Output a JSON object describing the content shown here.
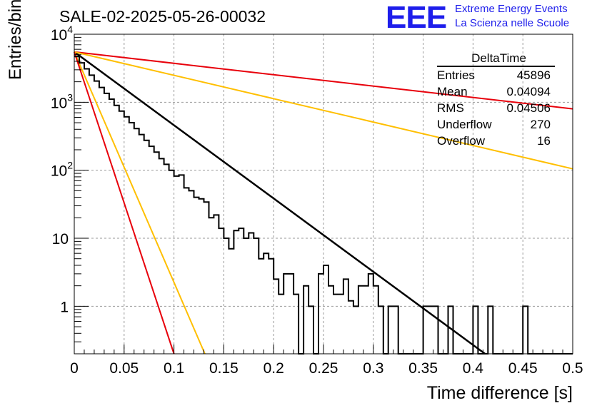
{
  "run_title": "SALE-02-2025-05-26-00032",
  "logo": {
    "letters": "EEE",
    "line1": "Extreme Energy Events",
    "line2": "La Scienza nelle Scuole",
    "color": "#1e1eeb"
  },
  "stats_box": {
    "title": "DeltaTime",
    "rows": [
      {
        "label": "Entries",
        "value": "45896"
      },
      {
        "label": "Mean",
        "value": "0.04094"
      },
      {
        "label": "RMS",
        "value": "0.04506"
      },
      {
        "label": "Underflow",
        "value": "270"
      },
      {
        "label": "Overflow",
        "value": "16"
      }
    ]
  },
  "chart_data": {
    "type": "line",
    "xlabel": "Time difference [s]",
    "ylabel": "Entries/bin",
    "xlim": [
      0,
      0.5
    ],
    "ylim": [
      0.2,
      10000
    ],
    "y_scale": "log",
    "grid": true,
    "x_ticks": [
      "0",
      "0.05",
      "0.1",
      "0.15",
      "0.2",
      "0.25",
      "0.3",
      "0.35",
      "0.4",
      "0.45",
      "0.5"
    ],
    "y_ticks": [
      {
        "value": 1,
        "base": "1",
        "exp": ""
      },
      {
        "value": 10,
        "base": "10",
        "exp": ""
      },
      {
        "value": 100,
        "base": "10",
        "exp": "2"
      },
      {
        "value": 1000,
        "base": "10",
        "exp": "3"
      },
      {
        "value": 10000,
        "base": "10",
        "exp": "4"
      }
    ],
    "histogram": {
      "bin_width": 0.005,
      "x_start": 0,
      "color": "#000000",
      "values": [
        4700,
        3800,
        3100,
        2500,
        2050,
        1650,
        1350,
        1110,
        900,
        740,
        610,
        500,
        410,
        335,
        275,
        225,
        185,
        148,
        122,
        100,
        82,
        85,
        55,
        50,
        40,
        38,
        34,
        20,
        22,
        14,
        10,
        7,
        13,
        14,
        10,
        12,
        10,
        5,
        6,
        5,
        2.5,
        1.5,
        3,
        3,
        1.5,
        0.1,
        2,
        1,
        0.1,
        3,
        4,
        2,
        1.5,
        1.5,
        2.5,
        1.2,
        1,
        2,
        2,
        3,
        2,
        1,
        0.1,
        1,
        1,
        0.1,
        0.1,
        0.1,
        0.1,
        0.1,
        1,
        1,
        1,
        0.1,
        0.1,
        1,
        0.1,
        0.1,
        0.1,
        0.1,
        1,
        0.1,
        0.1,
        1,
        0.1,
        0.1,
        0.1,
        0.1,
        0.1,
        0.1,
        1,
        0.1,
        0.1,
        0.1,
        0.1,
        0.1,
        0.1,
        0.1,
        0.1,
        0.1
      ]
    },
    "fit_lines": [
      {
        "color": "#000000",
        "width": 2.5,
        "points": [
          [
            0,
            5500
          ],
          [
            0.412,
            0.2
          ]
        ]
      },
      {
        "color": "#e8000b",
        "width": 2,
        "points": [
          [
            0,
            5500
          ],
          [
            0.5,
            800
          ]
        ]
      },
      {
        "color": "#ffbf00",
        "width": 2,
        "points": [
          [
            0,
            5500
          ],
          [
            0.5,
            105
          ]
        ]
      },
      {
        "color": "#ffbf00",
        "width": 2,
        "points": [
          [
            0,
            5500
          ],
          [
            0.131,
            0.2
          ]
        ]
      },
      {
        "color": "#e8000b",
        "width": 2,
        "points": [
          [
            0,
            5500
          ],
          [
            0.1,
            0.2
          ]
        ]
      }
    ]
  }
}
